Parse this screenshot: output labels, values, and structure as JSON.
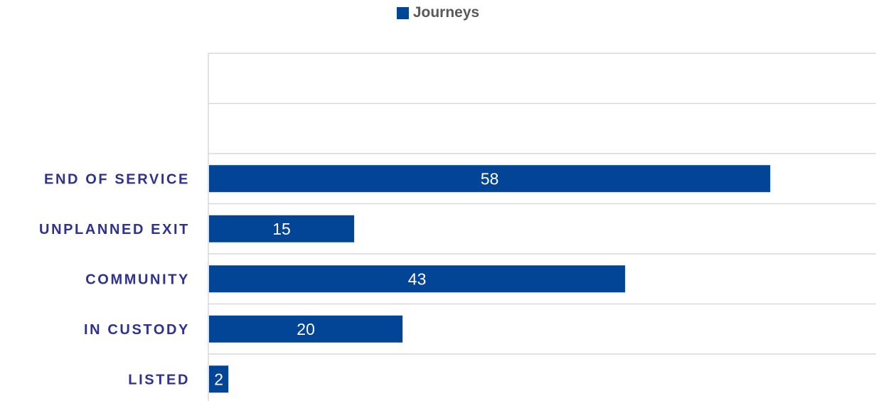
{
  "colors": {
    "bar": "#024496",
    "category_text": "#2E3192",
    "grid": "#D9D9D9",
    "legend_text": "#595959"
  },
  "legend": {
    "label": "Journeys"
  },
  "chart_data": {
    "type": "bar",
    "orientation": "horizontal",
    "title": "",
    "xlabel": "",
    "ylabel": "",
    "categories": [
      "END OF SERVICE",
      "UNPLANNED EXIT",
      "COMMUNITY",
      "IN CUSTODY",
      "LISTED"
    ],
    "series": [
      {
        "name": "Journeys",
        "values": [
          58,
          15,
          43,
          20,
          2
        ]
      }
    ],
    "xlim": [
      0,
      69
    ],
    "empty_rows_above": 2,
    "data_labels": true,
    "grid": true,
    "legend_position": "top"
  }
}
